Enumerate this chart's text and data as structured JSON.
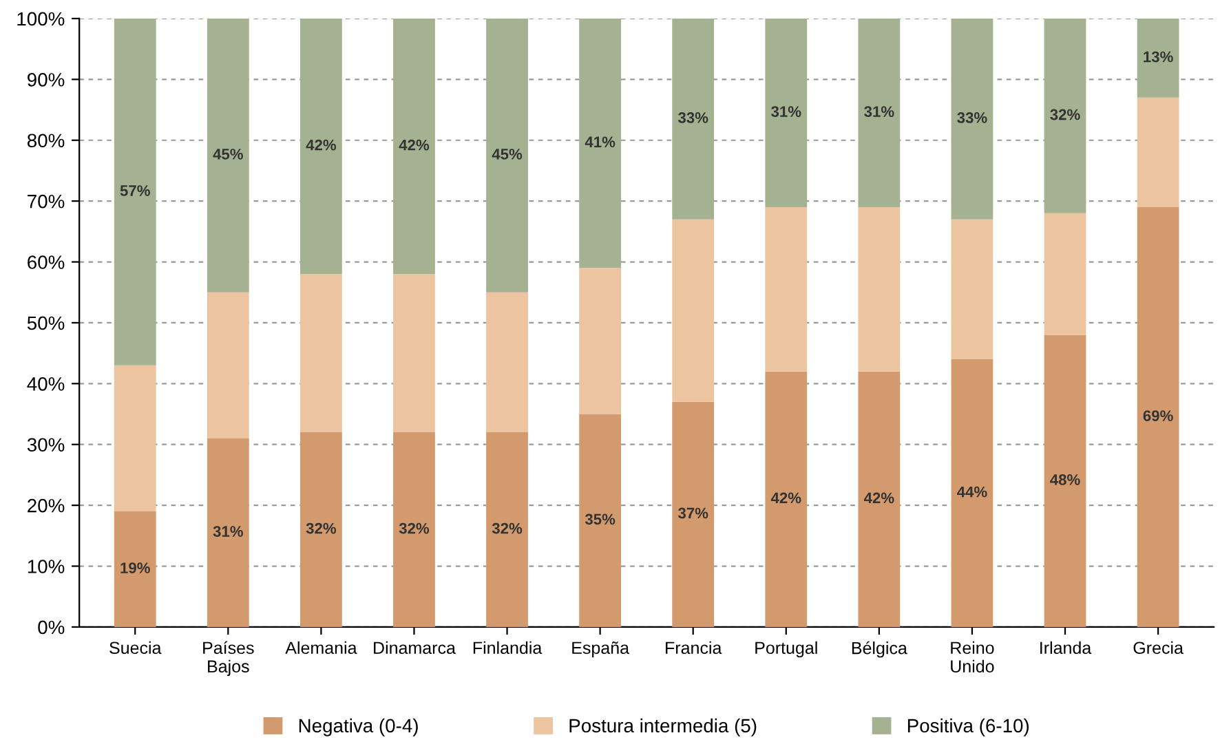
{
  "chart_data": {
    "type": "bar",
    "stacked": true,
    "categories": [
      "Suecia",
      "Países\nBajos",
      "Alemania",
      "Dinamarca",
      "Finlandia",
      "España",
      "Francia",
      "Portugal",
      "Bélgica",
      "Reino\nUnido",
      "Irlanda",
      "Grecia"
    ],
    "series": [
      {
        "name": "Negativa (0-4)",
        "color": "#d39a6e",
        "values": [
          19,
          31,
          32,
          32,
          32,
          35,
          37,
          42,
          42,
          44,
          48,
          69
        ],
        "value_labels": [
          "19%",
          "31%",
          "32%",
          "32%",
          "32%",
          "35%",
          "37%",
          "42%",
          "42%",
          "44%",
          "48%",
          "69%"
        ]
      },
      {
        "name": "Postura intermedia (5)",
        "color": "#ecc4a0",
        "values": [
          24,
          24,
          26,
          26,
          23,
          24,
          30,
          27,
          27,
          23,
          20,
          18
        ]
      },
      {
        "name": "Positiva (6-10)",
        "color": "#a5b291",
        "values": [
          57,
          45,
          42,
          42,
          45,
          41,
          33,
          31,
          31,
          33,
          32,
          13
        ],
        "value_labels": [
          "57%",
          "45%",
          "42%",
          "42%",
          "45%",
          "41%",
          "33%",
          "31%",
          "31%",
          "33%",
          "32%",
          "13%"
        ]
      }
    ],
    "ylim": [
      0,
      100
    ],
    "yticks": [
      {
        "value": 0,
        "label": "0%"
      },
      {
        "value": 10,
        "label": "10%"
      },
      {
        "value": 20,
        "label": "20%"
      },
      {
        "value": 30,
        "label": "30%"
      },
      {
        "value": 40,
        "label": "40%"
      },
      {
        "value": 50,
        "label": "50%"
      },
      {
        "value": 60,
        "label": "60%"
      },
      {
        "value": 70,
        "label": "70%"
      },
      {
        "value": 80,
        "label": "80%"
      },
      {
        "value": 90,
        "label": "90%"
      },
      {
        "value": 100,
        "label": "100%"
      }
    ],
    "grid": "y",
    "legend": "bottom"
  }
}
